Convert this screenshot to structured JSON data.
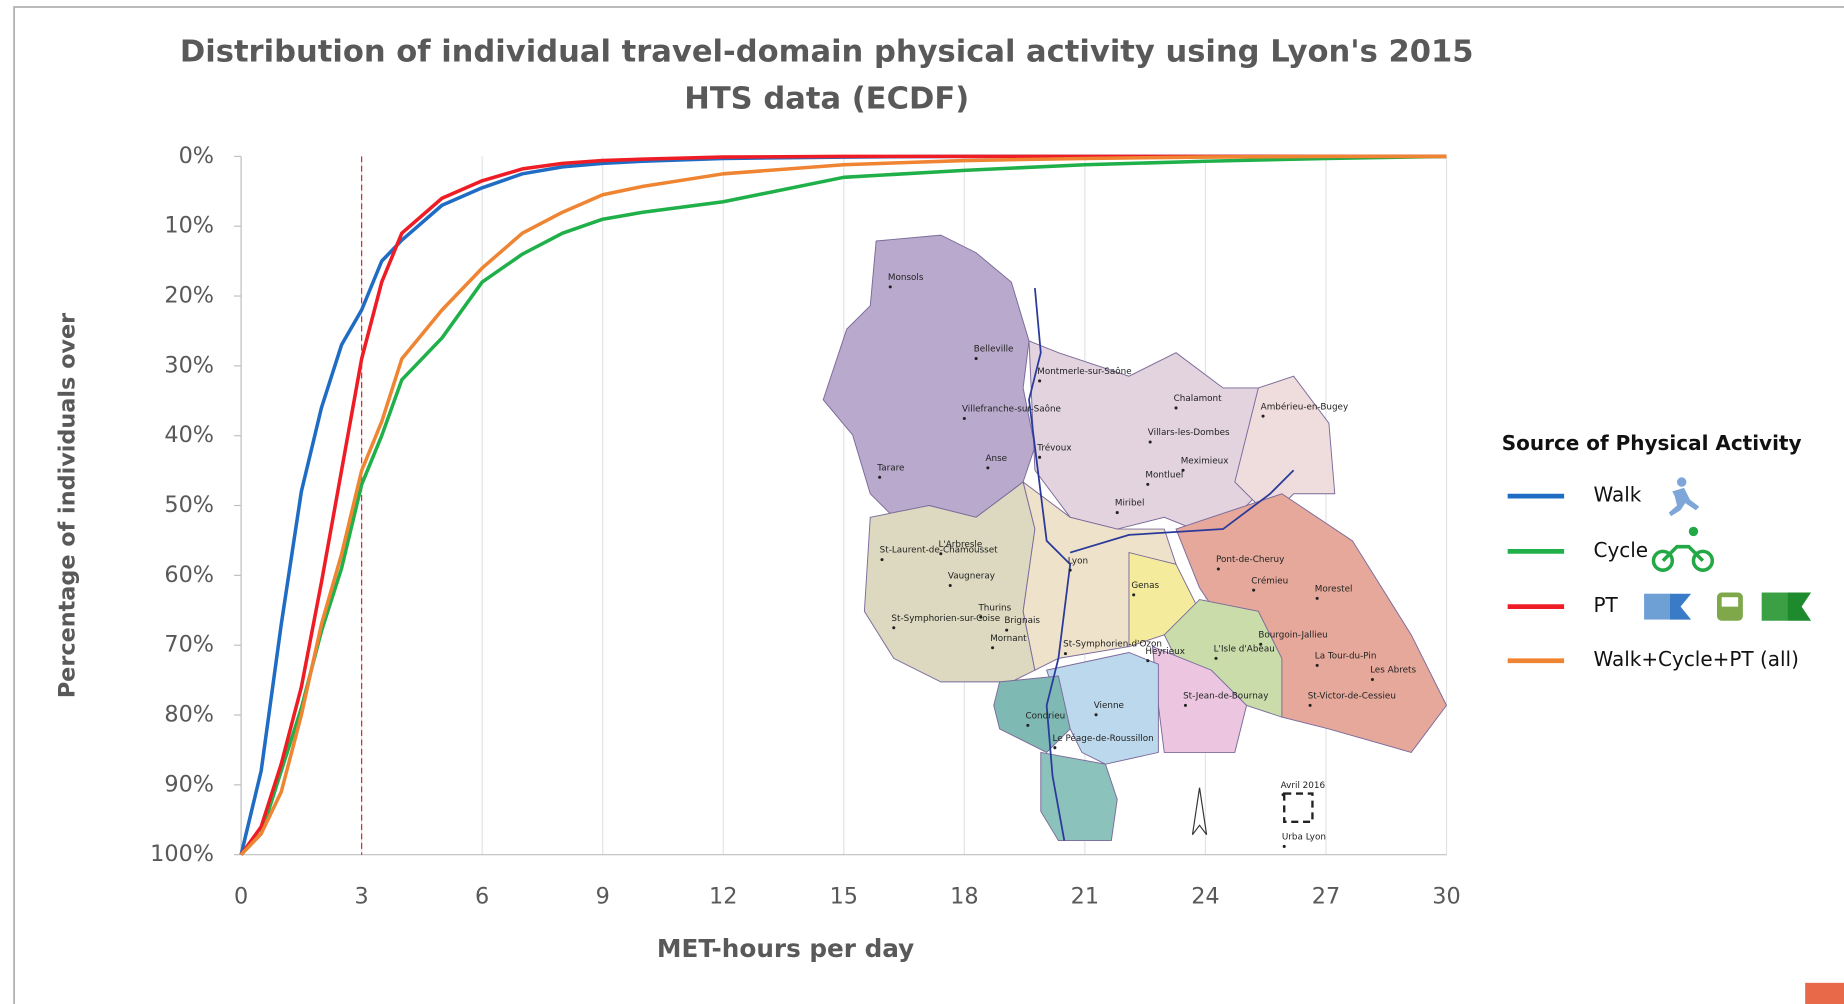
{
  "chart_data": {
    "type": "line",
    "title": [
      "Distribution of individual travel-domain physical activity using Lyon's 2015",
      "HTS data (ECDF)"
    ],
    "x_label": "MET-hours per day",
    "y_label": "Percentage of individuals over",
    "x": [
      0,
      0.5,
      1,
      1.5,
      2,
      2.5,
      3,
      3.5,
      4,
      5,
      6,
      7,
      8,
      9,
      10,
      12,
      15,
      18,
      21,
      24,
      27,
      30
    ],
    "series": [
      {
        "name": "Walk",
        "color": "#1f6cc4",
        "values": [
          100,
          88,
          67,
          48,
          36,
          27,
          22,
          15,
          12,
          7,
          4.5,
          2.5,
          1.5,
          1,
          0.7,
          0.3,
          0.1,
          0,
          0,
          0,
          0,
          0
        ]
      },
      {
        "name": "Cycle",
        "color": "#1fb04a",
        "values": [
          100,
          97,
          88,
          79,
          68,
          59,
          47,
          40,
          32,
          26,
          18,
          14,
          11,
          9,
          8,
          6.5,
          3,
          2,
          1.2,
          0.7,
          0.3,
          0
        ]
      },
      {
        "name": "PT",
        "color": "#ee1c24",
        "values": [
          100,
          96,
          87,
          76,
          61,
          45,
          29,
          18,
          11,
          6,
          3.5,
          1.8,
          1,
          0.6,
          0.4,
          0.1,
          0,
          0,
          0,
          0,
          0,
          0
        ]
      },
      {
        "name": "Walk+Cycle+PT (all)",
        "color": "#ef8533",
        "values": [
          100,
          97,
          91,
          80,
          67,
          57,
          45,
          38,
          29,
          22,
          16,
          11,
          8,
          5.5,
          4.3,
          2.5,
          1.2,
          0.6,
          0.3,
          0.1,
          0,
          0
        ]
      }
    ],
    "xlim": [
      0,
      30
    ],
    "xticks": [
      0,
      3,
      6,
      9,
      12,
      15,
      18,
      21,
      24,
      27,
      30
    ],
    "ylim": [
      0,
      100
    ],
    "y_inverted": true,
    "yticks": [
      {
        "value": 0,
        "label": "0%"
      },
      {
        "value": 10,
        "label": "10%"
      },
      {
        "value": 20,
        "label": "20%"
      },
      {
        "value": 30,
        "label": "30%"
      },
      {
        "value": 40,
        "label": "40%"
      },
      {
        "value": 50,
        "label": "50%"
      },
      {
        "value": 60,
        "label": "60%"
      },
      {
        "value": 70,
        "label": "70%"
      },
      {
        "value": 80,
        "label": "80%"
      },
      {
        "value": 90,
        "label": "90%"
      },
      {
        "value": 100,
        "label": "100%"
      }
    ],
    "grid": true,
    "reference_line": {
      "x": 3,
      "color": "#ee1c24"
    },
    "legend_title": "Source of Physical Activity",
    "legend_position": "right",
    "map_labels": [
      "Monsols",
      "Belleville",
      "Montmerle-sur-Saône",
      "Villefranche-sur-Saône",
      "Anse",
      "Trévoux",
      "Tarare",
      "Chalamont",
      "Villars-les-Dombes",
      "Ambérieu-en-Bugey",
      "Meximieux",
      "Montluel",
      "Miribel",
      "L'Arbresle",
      "St-Laurent-de-Chamousset",
      "Vaugneray",
      "Lyon",
      "Genas",
      "Pont-de-Cheruy",
      "Crémieu",
      "Morestel",
      "Thurins",
      "Brignais",
      "St-Symphorien-sur-Coise",
      "Mornant",
      "St-Symphorien-d'Ozon",
      "Heyrieux",
      "L'Isle d'Abeau",
      "Bourgoin-Jallieu",
      "La Tour-du-Pin",
      "Les Abrets",
      "St-Victor-de-Cessieu",
      "St-Jean-de-Bournay",
      "Vienne",
      "Condrieu",
      "Le Péage-de-Roussillon",
      "Avril 2016",
      "Urba Lyon"
    ]
  }
}
